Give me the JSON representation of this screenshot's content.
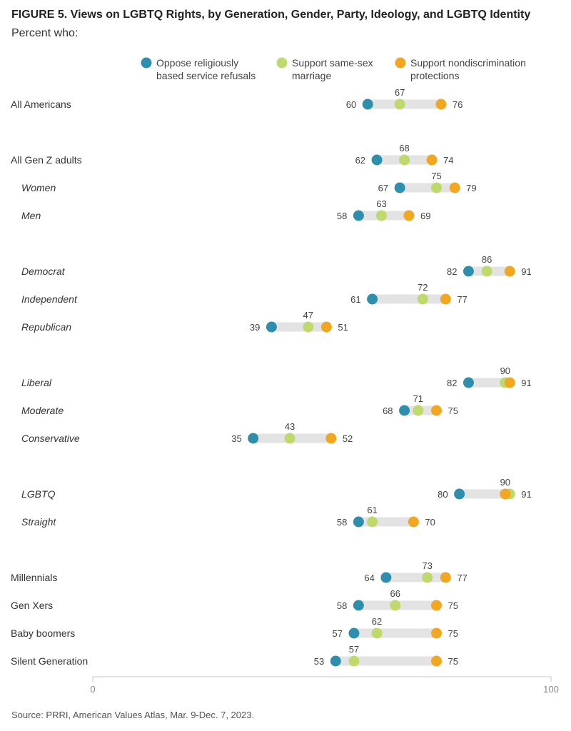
{
  "chart_data": {
    "type": "dot",
    "title": "FIGURE 5. Views on LGBTQ Rights, by Generation, Gender, Party, Ideology, and LGBTQ Identity",
    "subtitle": "Percent who:",
    "source": "Source: PRRI, American Values Atlas, Mar. 9-Dec. 7, 2023.",
    "xlim": [
      0,
      100
    ],
    "x_ticks": [
      "0",
      "100"
    ],
    "series": [
      {
        "name": "Oppose religiously based service refusals",
        "legend_lines": [
          "Oppose religiously",
          "based service refusals"
        ],
        "color": "#2e8fad"
      },
      {
        "name": "Support same-sex marriage",
        "legend_lines": [
          "Support same-sex",
          "marriage"
        ],
        "color": "#c0d96c"
      },
      {
        "name": "Support nondiscrimination protections",
        "legend_lines": [
          "Support nondiscrimination",
          "protections"
        ],
        "color": "#f2a722"
      }
    ],
    "rows": [
      {
        "label": "All Americans",
        "italic": false,
        "values": [
          60,
          67,
          76
        ]
      },
      {
        "label": "All Gen Z adults",
        "italic": false,
        "values": [
          62,
          68,
          74
        ]
      },
      {
        "label": "Women",
        "italic": true,
        "values": [
          67,
          75,
          79
        ]
      },
      {
        "label": "Men",
        "italic": true,
        "values": [
          58,
          63,
          69
        ]
      },
      {
        "label": "Democrat",
        "italic": true,
        "values": [
          82,
          86,
          91
        ]
      },
      {
        "label": "Independent",
        "italic": true,
        "values": [
          61,
          72,
          77
        ]
      },
      {
        "label": "Republican",
        "italic": true,
        "values": [
          39,
          47,
          51
        ]
      },
      {
        "label": "Liberal",
        "italic": true,
        "values": [
          82,
          90,
          91
        ]
      },
      {
        "label": "Moderate",
        "italic": true,
        "values": [
          68,
          71,
          75
        ]
      },
      {
        "label": "Conservative",
        "italic": true,
        "values": [
          35,
          43,
          52
        ]
      },
      {
        "label": "LGBTQ",
        "italic": true,
        "values": [
          80,
          91,
          90
        ]
      },
      {
        "label": "Straight",
        "italic": true,
        "values": [
          58,
          61,
          70
        ]
      },
      {
        "label": "Millennials",
        "italic": false,
        "values": [
          64,
          73,
          77
        ]
      },
      {
        "label": "Gen Xers",
        "italic": false,
        "values": [
          58,
          66,
          75
        ]
      },
      {
        "label": "Baby boomers",
        "italic": false,
        "values": [
          57,
          62,
          75
        ]
      },
      {
        "label": "Silent Generation",
        "italic": false,
        "values": [
          53,
          57,
          75
        ]
      }
    ]
  }
}
